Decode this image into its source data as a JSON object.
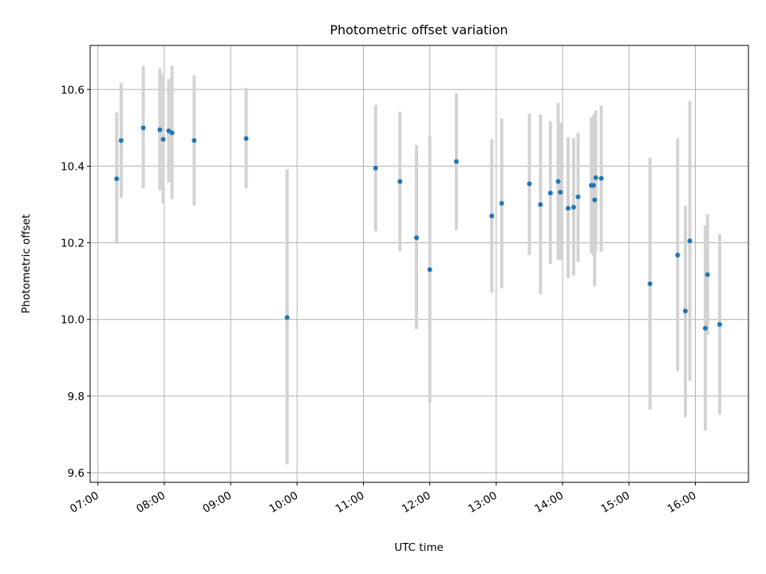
{
  "chart_data": {
    "type": "scatter",
    "title": "Photometric offset variation",
    "xlabel": "UTC time",
    "ylabel": "Photometric offset",
    "xlim": [
      "06:53",
      "16:48"
    ],
    "ylim": [
      9.575,
      10.715
    ],
    "x_ticks": [
      "07:00",
      "08:00",
      "09:00",
      "10:00",
      "11:00",
      "12:00",
      "13:00",
      "14:00",
      "15:00",
      "16:00"
    ],
    "y_ticks": [
      9.6,
      9.8,
      10.0,
      10.2,
      10.4,
      10.6
    ],
    "y_tick_labels": [
      "9.6",
      "9.8",
      "10.0",
      "10.2",
      "10.4",
      "10.6"
    ],
    "grid": true,
    "marker_color": "#1f77b4",
    "errorbar_color": "#d3d3d3",
    "points": [
      {
        "time": "07:17",
        "value": 10.367,
        "low": 10.197,
        "high": 10.54
      },
      {
        "time": "07:21",
        "value": 10.467,
        "low": 10.317,
        "high": 10.617
      },
      {
        "time": "07:41",
        "value": 10.5,
        "low": 10.342,
        "high": 10.662
      },
      {
        "time": "07:56",
        "value": 10.495,
        "low": 10.337,
        "high": 10.655
      },
      {
        "time": "07:59",
        "value": 10.47,
        "low": 10.302,
        "high": 10.64
      },
      {
        "time": "08:04",
        "value": 10.492,
        "low": 10.357,
        "high": 10.627
      },
      {
        "time": "08:07",
        "value": 10.487,
        "low": 10.314,
        "high": 10.662
      },
      {
        "time": "08:27",
        "value": 10.467,
        "low": 10.297,
        "high": 10.637
      },
      {
        "time": "09:14",
        "value": 10.472,
        "low": 10.342,
        "high": 10.604
      },
      {
        "time": "09:51",
        "value": 10.005,
        "low": 9.622,
        "high": 10.392
      },
      {
        "time": "11:11",
        "value": 10.395,
        "low": 10.23,
        "high": 10.56
      },
      {
        "time": "11:33",
        "value": 10.36,
        "low": 10.178,
        "high": 10.542
      },
      {
        "time": "11:48",
        "value": 10.213,
        "low": 9.975,
        "high": 10.455
      },
      {
        "time": "12:00",
        "value": 10.13,
        "low": 9.785,
        "high": 10.477
      },
      {
        "time": "12:24",
        "value": 10.412,
        "low": 10.233,
        "high": 10.59
      },
      {
        "time": "12:56",
        "value": 10.27,
        "low": 10.07,
        "high": 10.47
      },
      {
        "time": "13:05",
        "value": 10.303,
        "low": 10.081,
        "high": 10.524
      },
      {
        "time": "13:30",
        "value": 10.354,
        "low": 10.168,
        "high": 10.537
      },
      {
        "time": "13:40",
        "value": 10.3,
        "low": 10.066,
        "high": 10.535
      },
      {
        "time": "13:49",
        "value": 10.33,
        "low": 10.145,
        "high": 10.517
      },
      {
        "time": "13:56",
        "value": 10.36,
        "low": 10.155,
        "high": 10.565
      },
      {
        "time": "13:58",
        "value": 10.332,
        "low": 10.155,
        "high": 10.513
      },
      {
        "time": "14:05",
        "value": 10.29,
        "low": 10.108,
        "high": 10.475
      },
      {
        "time": "14:10",
        "value": 10.293,
        "low": 10.115,
        "high": 10.472
      },
      {
        "time": "14:14",
        "value": 10.32,
        "low": 10.15,
        "high": 10.487
      },
      {
        "time": "14:26",
        "value": 10.35,
        "low": 10.172,
        "high": 10.527
      },
      {
        "time": "14:28",
        "value": 10.35,
        "low": 10.165,
        "high": 10.533
      },
      {
        "time": "14:29",
        "value": 10.312,
        "low": 10.087,
        "high": 10.537
      },
      {
        "time": "14:30",
        "value": 10.37,
        "low": 10.177,
        "high": 10.545
      },
      {
        "time": "14:35",
        "value": 10.368,
        "low": 10.177,
        "high": 10.558
      },
      {
        "time": "15:19",
        "value": 10.093,
        "low": 9.765,
        "high": 10.422
      },
      {
        "time": "15:44",
        "value": 10.168,
        "low": 9.865,
        "high": 10.472
      },
      {
        "time": "15:51",
        "value": 10.022,
        "low": 9.745,
        "high": 10.297
      },
      {
        "time": "15:55",
        "value": 10.205,
        "low": 9.84,
        "high": 10.57
      },
      {
        "time": "16:09",
        "value": 9.977,
        "low": 9.71,
        "high": 10.245
      },
      {
        "time": "16:11",
        "value": 10.117,
        "low": 9.96,
        "high": 10.275
      },
      {
        "time": "16:22",
        "value": 9.987,
        "low": 9.752,
        "high": 10.222
      }
    ]
  }
}
